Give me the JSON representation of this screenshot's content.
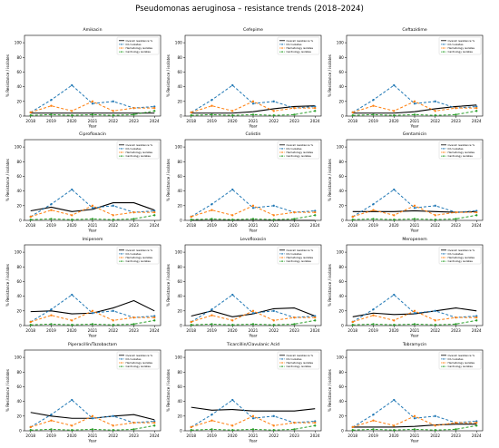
{
  "figure": {
    "title": "Pseudomonas aeruginosa – resistance trends (2018–2024)"
  },
  "legend_entries": [
    "Overall resistance %",
    "ICU isolates",
    "Hematology isolates",
    "Cardiology isolates"
  ],
  "colors": {
    "overall": "#000000",
    "icu": "#1f77b4",
    "hematology": "#ff7f0e",
    "cardiology": "#2ca02c"
  },
  "chart_data": [
    {
      "type": "line",
      "title": "Amikacin",
      "xlabel": "Year",
      "ylabel": "% Resistance / isolates",
      "x": [
        "2018",
        "2019",
        "2020",
        "2021",
        "2022",
        "2023",
        "2024"
      ],
      "ylim": [
        0,
        110
      ],
      "yticks": [
        0,
        20,
        40,
        60,
        80,
        100
      ],
      "grid": false,
      "legend": "top-right",
      "series": [
        {
          "name": "Overall resistance %",
          "values": [
            4,
            4,
            4,
            4,
            4,
            4,
            4
          ]
        },
        {
          "name": "ICU isolates",
          "values": [
            5,
            22,
            42,
            17,
            20,
            11,
            13
          ]
        },
        {
          "name": "Hematology isolates",
          "values": [
            5,
            14,
            7,
            20,
            7,
            11,
            11
          ]
        },
        {
          "name": "Cardiology isolates",
          "values": [
            1,
            2,
            1,
            2,
            1,
            2,
            7
          ]
        }
      ]
    },
    {
      "type": "line",
      "title": "Cefepime",
      "xlabel": "Year",
      "ylabel": "% Resistance / isolates",
      "x": [
        "2018",
        "2019",
        "2020",
        "2021",
        "2022",
        "2023",
        "2024"
      ],
      "ylim": [
        0,
        110
      ],
      "yticks": [
        0,
        20,
        40,
        60,
        80,
        100
      ],
      "grid": false,
      "legend": "top-right",
      "series": [
        {
          "name": "Overall resistance %",
          "values": [
            4,
            4,
            4,
            6,
            10,
            13,
            14
          ]
        },
        {
          "name": "ICU isolates",
          "values": [
            5,
            22,
            42,
            17,
            20,
            11,
            13
          ]
        },
        {
          "name": "Hematology isolates",
          "values": [
            5,
            14,
            7,
            20,
            7,
            11,
            11
          ]
        },
        {
          "name": "Cardiology isolates",
          "values": [
            1,
            2,
            1,
            2,
            1,
            2,
            7
          ]
        }
      ]
    },
    {
      "type": "line",
      "title": "Ceftazidime",
      "xlabel": "Year",
      "ylabel": "% Resistance / isolates",
      "x": [
        "2018",
        "2019",
        "2020",
        "2021",
        "2022",
        "2023",
        "2024"
      ],
      "ylim": [
        0,
        110
      ],
      "yticks": [
        0,
        20,
        40,
        60,
        80,
        100
      ],
      "grid": false,
      "legend": "top-right",
      "series": [
        {
          "name": "Overall resistance %",
          "values": [
            4,
            4,
            4,
            6,
            10,
            13,
            15
          ]
        },
        {
          "name": "ICU isolates",
          "values": [
            5,
            22,
            42,
            17,
            20,
            11,
            13
          ]
        },
        {
          "name": "Hematology isolates",
          "values": [
            5,
            14,
            7,
            20,
            7,
            11,
            11
          ]
        },
        {
          "name": "Cardiology isolates",
          "values": [
            1,
            2,
            1,
            2,
            1,
            2,
            7
          ]
        }
      ]
    },
    {
      "type": "line",
      "title": "Ciprofloxacin",
      "xlabel": "Year",
      "ylabel": "% Resistance / isolates",
      "x": [
        "2018",
        "2019",
        "2020",
        "2021",
        "2022",
        "2023",
        "2024"
      ],
      "ylim": [
        0,
        110
      ],
      "yticks": [
        0,
        20,
        40,
        60,
        80,
        100
      ],
      "grid": false,
      "legend": "top-right",
      "series": [
        {
          "name": "Overall resistance %",
          "values": [
            13,
            18,
            12,
            15,
            24,
            24,
            14
          ]
        },
        {
          "name": "ICU isolates",
          "values": [
            5,
            22,
            42,
            17,
            20,
            11,
            13
          ]
        },
        {
          "name": "Hematology isolates",
          "values": [
            5,
            14,
            7,
            20,
            7,
            11,
            11
          ]
        },
        {
          "name": "Cardiology isolates",
          "values": [
            1,
            2,
            1,
            2,
            1,
            2,
            7
          ]
        }
      ]
    },
    {
      "type": "line",
      "title": "Colistin",
      "xlabel": "Year",
      "ylabel": "% Resistance / isolates",
      "x": [
        "2018",
        "2019",
        "2020",
        "2021",
        "2022",
        "2023",
        "2024"
      ],
      "ylim": [
        0,
        110
      ],
      "yticks": [
        0,
        20,
        40,
        60,
        80,
        100
      ],
      "grid": false,
      "legend": "top-right",
      "series": [
        {
          "name": "Overall resistance %",
          "values": [
            0,
            0,
            0,
            0,
            0,
            0,
            0
          ]
        },
        {
          "name": "ICU isolates",
          "values": [
            5,
            22,
            42,
            17,
            20,
            11,
            13
          ]
        },
        {
          "name": "Hematology isolates",
          "values": [
            5,
            14,
            7,
            20,
            7,
            11,
            11
          ]
        },
        {
          "name": "Cardiology isolates",
          "values": [
            1,
            2,
            1,
            2,
            1,
            2,
            7
          ]
        }
      ]
    },
    {
      "type": "line",
      "title": "Gentamicin",
      "xlabel": "Year",
      "ylabel": "% Resistance / isolates",
      "x": [
        "2018",
        "2019",
        "2020",
        "2021",
        "2022",
        "2023",
        "2024"
      ],
      "ylim": [
        0,
        110
      ],
      "yticks": [
        0,
        20,
        40,
        60,
        80,
        100
      ],
      "grid": false,
      "legend": "top-right",
      "series": [
        {
          "name": "Overall resistance %",
          "values": [
            12,
            12,
            12,
            13,
            12,
            11,
            12
          ]
        },
        {
          "name": "ICU isolates",
          "values": [
            5,
            22,
            42,
            17,
            20,
            11,
            13
          ]
        },
        {
          "name": "Hematology isolates",
          "values": [
            5,
            14,
            7,
            20,
            7,
            11,
            11
          ]
        },
        {
          "name": "Cardiology isolates",
          "values": [
            1,
            2,
            1,
            2,
            1,
            2,
            7
          ]
        }
      ]
    },
    {
      "type": "line",
      "title": "Imipenem",
      "xlabel": "Year",
      "ylabel": "% Resistance / isolates",
      "x": [
        "2018",
        "2019",
        "2020",
        "2021",
        "2022",
        "2023",
        "2024"
      ],
      "ylim": [
        0,
        110
      ],
      "yticks": [
        0,
        20,
        40,
        60,
        80,
        100
      ],
      "grid": false,
      "legend": "top-right",
      "series": [
        {
          "name": "Overall resistance %",
          "values": [
            19,
            20,
            16,
            17,
            24,
            34,
            20
          ]
        },
        {
          "name": "ICU isolates",
          "values": [
            5,
            22,
            42,
            17,
            20,
            11,
            13
          ]
        },
        {
          "name": "Hematology isolates",
          "values": [
            5,
            14,
            7,
            20,
            7,
            11,
            11
          ]
        },
        {
          "name": "Cardiology isolates",
          "values": [
            1,
            2,
            1,
            2,
            1,
            2,
            7
          ]
        }
      ]
    },
    {
      "type": "line",
      "title": "Levofloxacin",
      "xlabel": "Year",
      "ylabel": "% Resistance / isolates",
      "x": [
        "2018",
        "2019",
        "2020",
        "2021",
        "2022",
        "2023",
        "2024"
      ],
      "ylim": [
        0,
        110
      ],
      "yticks": [
        0,
        20,
        40,
        60,
        80,
        100
      ],
      "grid": false,
      "legend": "top-right",
      "series": [
        {
          "name": "Overall resistance %",
          "values": [
            13,
            20,
            12,
            16,
            23,
            24,
            13
          ]
        },
        {
          "name": "ICU isolates",
          "values": [
            5,
            22,
            42,
            17,
            20,
            11,
            13
          ]
        },
        {
          "name": "Hematology isolates",
          "values": [
            5,
            14,
            7,
            20,
            7,
            11,
            11
          ]
        },
        {
          "name": "Cardiology isolates",
          "values": [
            1,
            2,
            1,
            2,
            1,
            2,
            7
          ]
        }
      ]
    },
    {
      "type": "line",
      "title": "Meropenem",
      "xlabel": "Year",
      "ylabel": "% Resistance / isolates",
      "x": [
        "2018",
        "2019",
        "2020",
        "2021",
        "2022",
        "2023",
        "2024"
      ],
      "ylim": [
        0,
        110
      ],
      "yticks": [
        0,
        20,
        40,
        60,
        80,
        100
      ],
      "grid": false,
      "legend": "top-right",
      "series": [
        {
          "name": "Overall resistance %",
          "values": [
            12,
            17,
            15,
            16,
            20,
            24,
            20
          ]
        },
        {
          "name": "ICU isolates",
          "values": [
            5,
            22,
            42,
            17,
            20,
            11,
            13
          ]
        },
        {
          "name": "Hematology isolates",
          "values": [
            5,
            14,
            7,
            20,
            7,
            11,
            11
          ]
        },
        {
          "name": "Cardiology isolates",
          "values": [
            1,
            2,
            1,
            2,
            1,
            2,
            7
          ]
        }
      ]
    },
    {
      "type": "line",
      "title": "Piperacillin/Tazobactam",
      "xlabel": "Year",
      "ylabel": "% Resistance / isolates",
      "x": [
        "2018",
        "2019",
        "2020",
        "2021",
        "2022",
        "2023",
        "2024"
      ],
      "ylim": [
        0,
        110
      ],
      "yticks": [
        0,
        20,
        40,
        60,
        80,
        100
      ],
      "grid": false,
      "legend": "top-right",
      "series": [
        {
          "name": "Overall resistance %",
          "values": [
            25,
            20,
            17,
            17,
            20,
            22,
            15
          ]
        },
        {
          "name": "ICU isolates",
          "values": [
            5,
            22,
            42,
            17,
            20,
            11,
            13
          ]
        },
        {
          "name": "Hematology isolates",
          "values": [
            5,
            14,
            7,
            20,
            7,
            11,
            11
          ]
        },
        {
          "name": "Cardiology isolates",
          "values": [
            1,
            2,
            1,
            2,
            1,
            2,
            7
          ]
        }
      ]
    },
    {
      "type": "line",
      "title": "Ticarcillin/Clavulanic Acid",
      "xlabel": "Year",
      "ylabel": "% Resistance / isolates",
      "x": [
        "2018",
        "2019",
        "2020",
        "2021",
        "2022",
        "2023",
        "2024"
      ],
      "ylim": [
        0,
        110
      ],
      "yticks": [
        0,
        20,
        40,
        60,
        80,
        100
      ],
      "grid": false,
      "legend": "top-right",
      "series": [
        {
          "name": "Overall resistance %",
          "values": [
            32,
            28,
            29,
            27,
            27,
            27,
            30
          ]
        },
        {
          "name": "ICU isolates",
          "values": [
            5,
            22,
            42,
            17,
            20,
            11,
            13
          ]
        },
        {
          "name": "Hematology isolates",
          "values": [
            5,
            14,
            7,
            20,
            7,
            11,
            11
          ]
        },
        {
          "name": "Cardiology isolates",
          "values": [
            1,
            2,
            1,
            2,
            1,
            2,
            7
          ]
        }
      ]
    },
    {
      "type": "line",
      "title": "Tobramycin",
      "xlabel": "Year",
      "ylabel": "% Resistance / isolates",
      "x": [
        "2018",
        "2019",
        "2020",
        "2021",
        "2022",
        "2023",
        "2024"
      ],
      "ylim": [
        0,
        110
      ],
      "yticks": [
        0,
        20,
        40,
        60,
        80,
        100
      ],
      "grid": false,
      "legend": "top-right",
      "series": [
        {
          "name": "Overall resistance %",
          "values": [
            5,
            5,
            5,
            6,
            8,
            9,
            9
          ]
        },
        {
          "name": "ICU isolates",
          "values": [
            5,
            22,
            42,
            17,
            20,
            11,
            13
          ]
        },
        {
          "name": "Hematology isolates",
          "values": [
            5,
            14,
            7,
            20,
            7,
            11,
            11
          ]
        },
        {
          "name": "Cardiology isolates",
          "values": [
            1,
            2,
            1,
            2,
            1,
            2,
            7
          ]
        }
      ]
    }
  ]
}
